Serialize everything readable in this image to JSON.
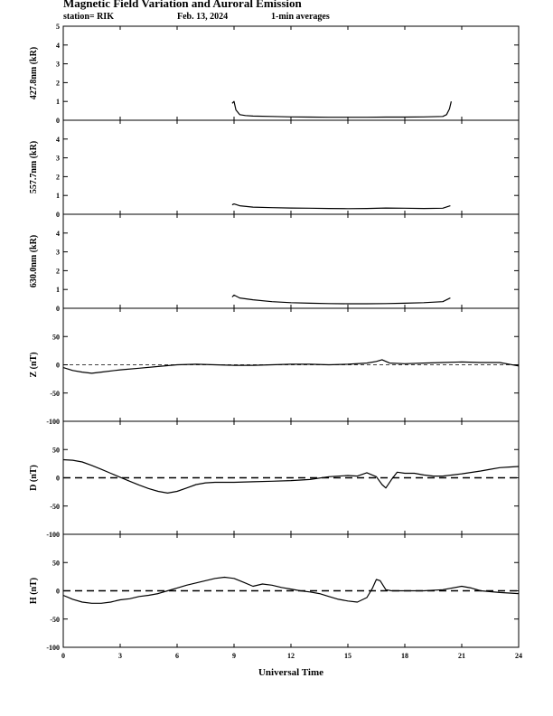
{
  "header": {
    "title": "Magnetic Field Variation and Auroral Emission",
    "station": "station= RIK",
    "date": "Feb. 13, 2024",
    "averaging": "1-min averages"
  },
  "chart_data": [
    {
      "type": "line",
      "ylabel": "427.8nm (kR)",
      "ylim": [
        0,
        5
      ],
      "yticks": [
        0,
        1,
        2,
        3,
        4,
        5
      ],
      "baseline_dashed": false,
      "series": [
        {
          "x": [
            8.9,
            9.0,
            9.1,
            9.3,
            9.6,
            10.0,
            11.0,
            12.0,
            13.0,
            14.0,
            15.0,
            16.0,
            17.0,
            18.0,
            19.0,
            20.0,
            20.2,
            20.35,
            20.45
          ],
          "y": [
            0.9,
            1.0,
            0.55,
            0.3,
            0.25,
            0.22,
            0.2,
            0.18,
            0.17,
            0.16,
            0.16,
            0.16,
            0.17,
            0.17,
            0.18,
            0.2,
            0.3,
            0.6,
            1.0
          ]
        }
      ]
    },
    {
      "type": "line",
      "ylabel": "557.7nm (kR)",
      "ylim": [
        0,
        5
      ],
      "yticks": [
        0,
        1,
        2,
        3,
        4
      ],
      "baseline_dashed": false,
      "series": [
        {
          "x": [
            8.9,
            9.0,
            9.3,
            10.0,
            11.0,
            12.0,
            13.0,
            14.0,
            15.0,
            16.0,
            17.0,
            18.0,
            19.0,
            20.0,
            20.4
          ],
          "y": [
            0.5,
            0.55,
            0.45,
            0.38,
            0.35,
            0.33,
            0.32,
            0.31,
            0.3,
            0.31,
            0.33,
            0.32,
            0.31,
            0.32,
            0.45
          ]
        }
      ]
    },
    {
      "type": "line",
      "ylabel": "630.0nm (kR)",
      "ylim": [
        0,
        5
      ],
      "yticks": [
        0,
        1,
        2,
        3,
        4
      ],
      "baseline_dashed": false,
      "series": [
        {
          "x": [
            8.9,
            9.0,
            9.3,
            10.0,
            11.0,
            12.0,
            13.0,
            14.0,
            15.0,
            16.0,
            17.0,
            18.0,
            19.0,
            20.0,
            20.4
          ],
          "y": [
            0.6,
            0.7,
            0.55,
            0.45,
            0.35,
            0.3,
            0.27,
            0.25,
            0.24,
            0.24,
            0.25,
            0.27,
            0.3,
            0.35,
            0.55
          ]
        }
      ]
    },
    {
      "type": "line",
      "ylabel": "Z (nT)",
      "ylim": [
        -100,
        100
      ],
      "yticks": [
        50,
        0,
        -50,
        -100
      ],
      "baseline_dashed": true,
      "dash": "thin",
      "series": [
        {
          "x": [
            0,
            0.5,
            1.0,
            1.5,
            2.0,
            3.0,
            4.0,
            5.0,
            6.0,
            7.0,
            8.0,
            9.0,
            10.0,
            11.0,
            12.0,
            13.0,
            14.0,
            15.0,
            16.0,
            16.5,
            16.8,
            17.2,
            18.0,
            19.0,
            20.0,
            21.0,
            22.0,
            23.0,
            24.0
          ],
          "y": [
            -5,
            -10,
            -13,
            -15,
            -13,
            -9,
            -6,
            -3,
            0,
            1,
            0,
            -1,
            -1,
            0,
            1,
            1,
            0,
            1,
            3,
            6,
            9,
            3,
            2,
            3,
            4,
            5,
            4,
            4,
            -2
          ]
        }
      ]
    },
    {
      "type": "line",
      "ylabel": "D (nT)",
      "ylim": [
        -100,
        100
      ],
      "yticks": [
        50,
        0,
        -50,
        -100
      ],
      "baseline_dashed": true,
      "dash": "thick",
      "series": [
        {
          "x": [
            0,
            0.5,
            1.0,
            1.5,
            2.0,
            2.5,
            3.0,
            3.5,
            4.0,
            4.5,
            5.0,
            5.5,
            6.0,
            6.5,
            7.0,
            7.5,
            8.0,
            9.0,
            10.0,
            11.0,
            12.0,
            13.0,
            14.0,
            15.0,
            15.5,
            16.0,
            16.5,
            16.8,
            17.0,
            17.3,
            17.6,
            18.0,
            18.5,
            19.0,
            19.5,
            20.0,
            21.0,
            22.0,
            22.5,
            23.0,
            23.5,
            24.0
          ],
          "y": [
            32,
            31,
            28,
            22,
            15,
            8,
            1,
            -6,
            -13,
            -19,
            -24,
            -27,
            -24,
            -18,
            -12,
            -9,
            -8,
            -8,
            -7,
            -6,
            -5,
            -3,
            2,
            4,
            3,
            9,
            2,
            -12,
            -18,
            -3,
            10,
            8,
            8,
            5,
            3,
            3,
            7,
            12,
            15,
            18,
            19,
            20
          ]
        }
      ]
    },
    {
      "type": "line",
      "ylabel": "H (nT)",
      "ylim": [
        -100,
        100
      ],
      "yticks": [
        50,
        0,
        -50,
        -100
      ],
      "baseline_dashed": true,
      "dash": "thick",
      "series": [
        {
          "x": [
            0,
            0.5,
            1.0,
            1.5,
            2.0,
            2.5,
            3.0,
            3.5,
            4.0,
            4.5,
            5.0,
            5.5,
            6.0,
            6.5,
            7.0,
            7.5,
            8.0,
            8.5,
            9.0,
            9.5,
            10.0,
            10.5,
            11.0,
            11.5,
            12.0,
            12.5,
            13.0,
            13.5,
            14.0,
            14.5,
            15.0,
            15.5,
            16.0,
            16.3,
            16.5,
            16.7,
            17.0,
            17.3,
            18.0,
            19.0,
            20.0,
            21.0,
            21.5,
            22.0,
            23.0,
            24.0
          ],
          "y": [
            -8,
            -15,
            -20,
            -22,
            -22,
            -20,
            -16,
            -14,
            -10,
            -8,
            -5,
            0,
            5,
            10,
            14,
            18,
            22,
            24,
            22,
            15,
            8,
            12,
            10,
            6,
            3,
            0,
            -2,
            -5,
            -10,
            -15,
            -18,
            -20,
            -12,
            5,
            20,
            18,
            2,
            0,
            0,
            0,
            2,
            8,
            5,
            0,
            -3,
            -5
          ]
        }
      ]
    }
  ],
  "x_axis": {
    "label": "Universal Time",
    "xlim": [
      0,
      24
    ],
    "ticks": [
      0,
      3,
      6,
      9,
      12,
      15,
      18,
      21,
      24
    ]
  }
}
